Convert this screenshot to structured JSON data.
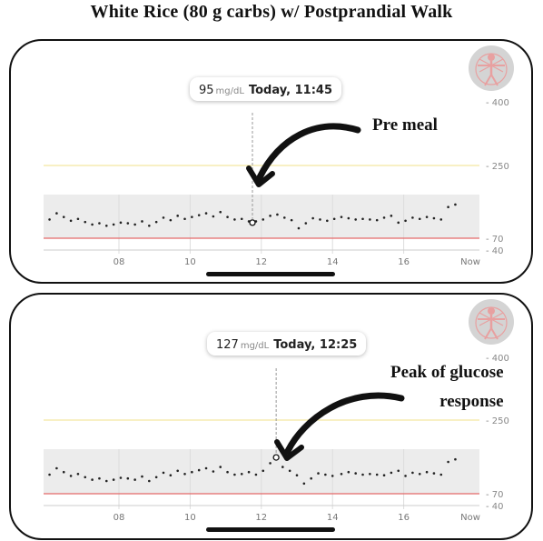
{
  "title": "White Rice (80 g carbs) w/ Postprandial Walk",
  "panels": [
    {
      "tooltip": {
        "value": "95",
        "unit": "mg/dL",
        "time": "Today, 11:45"
      },
      "annotation_lines": [
        "Pre meal"
      ]
    },
    {
      "tooltip": {
        "value": "127",
        "unit": "mg/dL",
        "time": "Today, 12:25"
      },
      "annotation_lines": [
        "Peak of glucose",
        "response"
      ]
    }
  ],
  "colors": {
    "high_threshold": "#f0e08a",
    "low_threshold": "#e46a6a",
    "target_band": "#ececec",
    "dots": "#222222",
    "grid": "#dddddd"
  },
  "icons": {
    "avatar": "vitruvian-figure-avatar-icon"
  },
  "chart_data": [
    {
      "type": "scatter",
      "title": "",
      "xlabel": "",
      "ylabel": "",
      "unit": "mg/dL",
      "x_ticks": [
        "08",
        "10",
        "12",
        "14",
        "16",
        "Now"
      ],
      "y_ticks": [
        400,
        250,
        70,
        40
      ],
      "ylim": [
        40,
        400
      ],
      "target_range": [
        70,
        140
      ],
      "thresholds": {
        "high": 250,
        "low": 70
      },
      "grid": true,
      "x_unit": "hour of day",
      "highlight": {
        "x": 11.75,
        "y": 95
      },
      "series": [
        {
          "x": [
            6.05,
            6.25,
            6.45,
            6.65,
            6.85,
            7.05,
            7.25,
            7.45,
            7.65,
            7.85,
            8.05,
            8.25,
            8.45,
            8.65,
            8.85,
            9.05,
            9.25,
            9.45,
            9.65,
            9.85,
            10.05,
            10.25,
            10.45,
            10.65,
            10.85,
            11.05,
            11.25,
            11.45,
            11.65,
            11.75,
            11.85,
            12.05,
            12.25,
            12.45,
            12.65,
            12.85,
            13.05,
            13.25,
            13.45,
            13.65,
            13.85,
            14.05,
            14.25,
            14.45,
            14.65,
            14.85,
            15.05,
            15.25,
            15.45,
            15.65,
            15.85,
            16.05,
            16.25,
            16.45,
            16.65,
            16.85,
            17.05,
            17.25,
            17.45
          ],
          "y": [
            100,
            110,
            104,
            98,
            101,
            96,
            92,
            94,
            90,
            92,
            95,
            94,
            92,
            97,
            90,
            96,
            103,
            99,
            106,
            101,
            104,
            107,
            110,
            105,
            112,
            104,
            100,
            101,
            97,
            95,
            97,
            100,
            106,
            108,
            103,
            99,
            86,
            94,
            102,
            100,
            98,
            101,
            104,
            102,
            100,
            101,
            100,
            99,
            103,
            106,
            95,
            98,
            103,
            101,
            104,
            102,
            100,
            120,
            124
          ]
        }
      ]
    },
    {
      "type": "scatter",
      "title": "",
      "xlabel": "",
      "ylabel": "",
      "unit": "mg/dL",
      "x_ticks": [
        "08",
        "10",
        "12",
        "14",
        "16",
        "Now"
      ],
      "y_ticks": [
        400,
        250,
        70,
        40
      ],
      "ylim": [
        40,
        400
      ],
      "target_range": [
        70,
        140
      ],
      "thresholds": {
        "high": 250,
        "low": 70
      },
      "grid": true,
      "x_unit": "hour of day",
      "highlight": {
        "x": 12.4167,
        "y": 127
      },
      "series": [
        {
          "x": [
            6.05,
            6.25,
            6.45,
            6.65,
            6.85,
            7.05,
            7.25,
            7.45,
            7.65,
            7.85,
            8.05,
            8.25,
            8.45,
            8.65,
            8.85,
            9.05,
            9.25,
            9.45,
            9.65,
            9.85,
            10.05,
            10.25,
            10.45,
            10.65,
            10.85,
            11.05,
            11.25,
            11.45,
            11.65,
            11.85,
            12.05,
            12.25,
            12.42,
            12.6,
            12.8,
            13.0,
            13.2,
            13.4,
            13.6,
            13.8,
            14.0,
            14.25,
            14.45,
            14.65,
            14.85,
            15.05,
            15.25,
            15.45,
            15.65,
            15.85,
            16.05,
            16.25,
            16.45,
            16.65,
            16.85,
            17.05,
            17.25,
            17.45
          ],
          "y": [
            100,
            110,
            104,
            98,
            101,
            96,
            92,
            94,
            90,
            92,
            95,
            94,
            92,
            97,
            90,
            96,
            103,
            99,
            106,
            101,
            104,
            107,
            110,
            105,
            112,
            104,
            100,
            101,
            104,
            100,
            106,
            118,
            127,
            112,
            106,
            99,
            86,
            94,
            102,
            100,
            98,
            101,
            104,
            102,
            100,
            101,
            100,
            99,
            103,
            106,
            98,
            103,
            101,
            104,
            102,
            100,
            120,
            124
          ]
        }
      ]
    }
  ]
}
